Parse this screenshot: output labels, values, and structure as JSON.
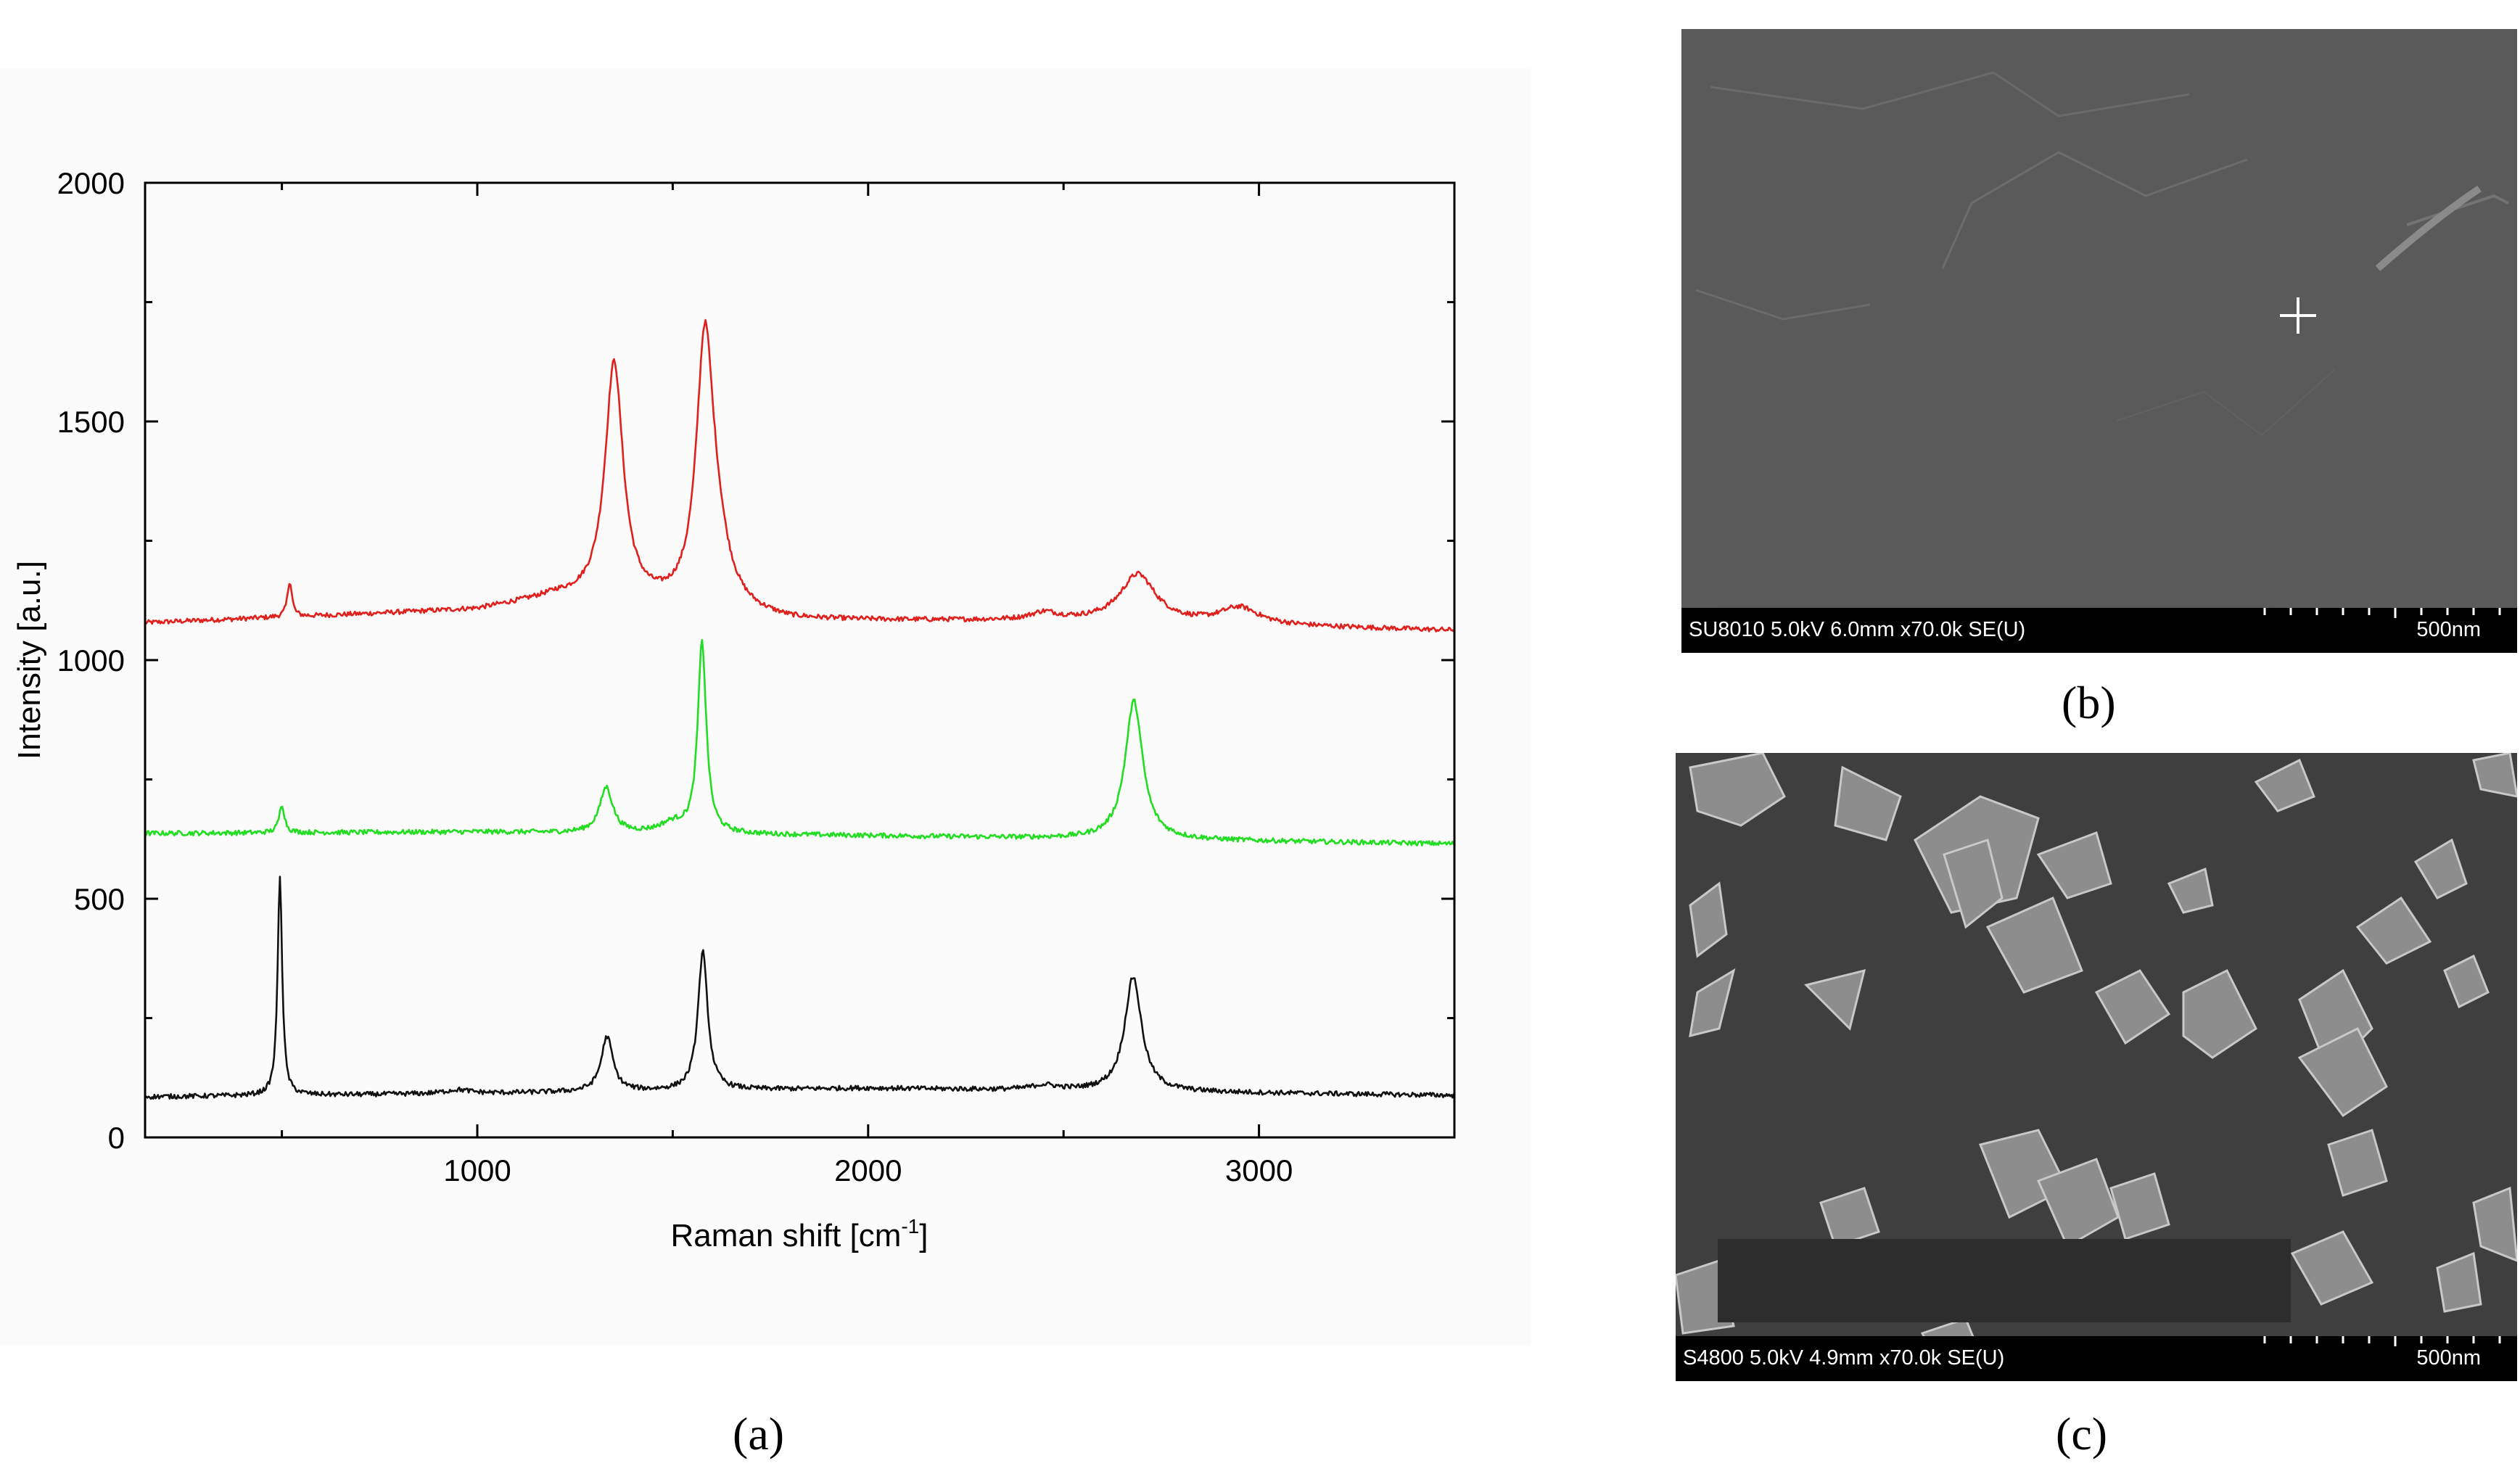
{
  "chart_data": {
    "type": "line",
    "xlabel": "Raman shift [cm",
    "xlabel_sup": "-1",
    "xlabel_end": "]",
    "ylabel": "Intensity [a.u.]",
    "xlim": [
      150,
      3500
    ],
    "ylim": [
      0,
      2000
    ],
    "xticks": [
      1000,
      2000,
      3000
    ],
    "yticks": [
      0,
      500,
      1000,
      1500,
      2000
    ],
    "grid": false,
    "series": [
      {
        "color": "#e0201c",
        "baseline": [
          [
            150,
            1078
          ],
          [
            1000,
            1105
          ],
          [
            1200,
            1130
          ],
          [
            1800,
            1082
          ],
          [
            2500,
            1082
          ],
          [
            3500,
            1062
          ]
        ],
        "peaks": [
          [
            520,
            75,
            7
          ],
          [
            1350,
            500,
            28
          ],
          [
            1582,
            520,
            26
          ],
          [
            1610,
            120,
            40
          ],
          [
            2690,
            100,
            55
          ],
          [
            2950,
            35,
            60
          ],
          [
            2450,
            15,
            40
          ]
        ],
        "noise": 5
      },
      {
        "color": "#22dd22",
        "baseline": [
          [
            150,
            637
          ],
          [
            1000,
            640
          ],
          [
            2000,
            632
          ],
          [
            3500,
            615
          ]
        ],
        "peaks": [
          [
            500,
            60,
            8
          ],
          [
            1330,
            95,
            20
          ],
          [
            1575,
            400,
            13
          ],
          [
            1500,
            20,
            40
          ],
          [
            2680,
            290,
            27
          ]
        ],
        "noise": 5
      },
      {
        "color": "#111111",
        "baseline": [
          [
            150,
            85
          ],
          [
            1000,
            92
          ],
          [
            2000,
            103
          ],
          [
            3500,
            88
          ]
        ],
        "peaks": [
          [
            495,
            460,
            7
          ],
          [
            1332,
            115,
            18
          ],
          [
            1577,
            290,
            15
          ],
          [
            2678,
            240,
            26
          ],
          [
            950,
            8,
            40
          ],
          [
            2450,
            10,
            40
          ]
        ],
        "noise": 5
      }
    ]
  },
  "panels": {
    "a_label": "(a)",
    "b_label": "(b)",
    "c_label": "(c)"
  },
  "sem_b": {
    "info": "SU8010 5.0kV 6.0mm x70.0k SE(U)",
    "scale": "500nm"
  },
  "sem_c": {
    "info": "S4800 5.0kV 4.9mm x70.0k SE(U)",
    "scale": "500nm"
  },
  "colors": {
    "sem_b_background": "#5a5a5a",
    "sem_c_background": "#3f3f3f",
    "redaction": "#595959"
  }
}
